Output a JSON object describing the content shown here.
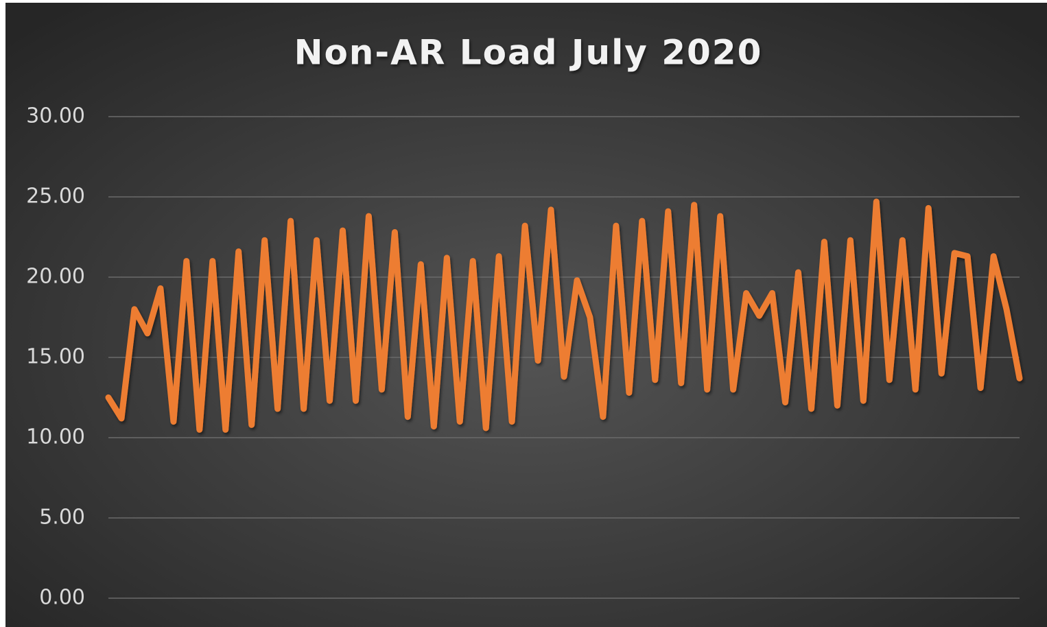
{
  "chart_data": {
    "type": "line",
    "title": "Non-AR Load July 2020",
    "series": [
      {
        "name": "Non-AR Load",
        "color": "#ed7d31",
        "values": [
          12.5,
          11.2,
          18,
          16.5,
          19.3,
          11,
          21,
          10.5,
          21,
          10.5,
          21.6,
          10.8,
          22.3,
          11.8,
          23.5,
          11.8,
          22.3,
          12.3,
          22.9,
          12.3,
          23.8,
          13,
          22.8,
          11.3,
          20.8,
          10.7,
          21.2,
          11,
          21,
          10.6,
          21.3,
          11,
          23.2,
          14.8,
          24.2,
          13.8,
          19.8,
          17.5,
          11.3,
          23.2,
          12.8,
          23.5,
          13.6,
          24.1,
          13.4,
          24.5,
          13,
          23.8,
          13,
          19,
          17.6,
          19,
          12.2,
          20.3,
          11.8,
          22.2,
          12,
          22.3,
          12.3,
          24.7,
          13.6,
          22.3,
          13,
          24.3,
          14,
          21.5,
          21.3,
          13.1,
          21.3,
          18,
          13.7
        ]
      }
    ],
    "ylim": [
      0,
      30
    ],
    "yticks": [
      {
        "value": 0,
        "label": "0.00"
      },
      {
        "value": 5,
        "label": "5.00"
      },
      {
        "value": 10,
        "label": "10.00"
      },
      {
        "value": 15,
        "label": "15.00"
      },
      {
        "value": 20,
        "label": "20.00"
      },
      {
        "value": 25,
        "label": "25.00"
      },
      {
        "value": 30,
        "label": "30.00"
      }
    ],
    "grid": true
  }
}
